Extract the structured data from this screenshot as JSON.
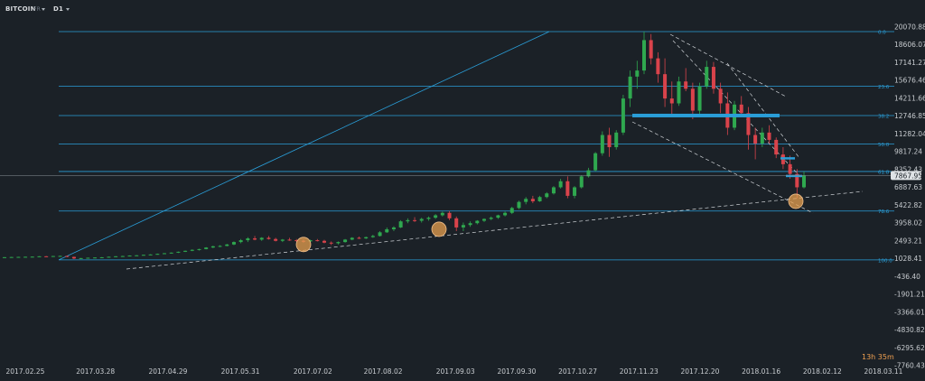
{
  "toolbar": {
    "symbol": "BITCOIN",
    "symbol_sub": "FR",
    "timeframe": "D1"
  },
  "countdown": "13h 35m",
  "colors": {
    "background": "#1b2127",
    "fib_line": "#2a9ed8",
    "candle_up": "#2fa84f",
    "candle_down": "#d9434b",
    "highlight_circle": "#e8a050",
    "trend_dashed": "#d0d4d8",
    "resistance_bar": "#2a9ed8"
  },
  "chart_data": {
    "type": "candlestick",
    "title": "",
    "y_axis_ticks": [
      "20070.88",
      "18606.07",
      "17141.27",
      "15676.46",
      "14211.66",
      "12746.85",
      "11282.04",
      "9817.24",
      "8352.43",
      "6887.63",
      "5422.82",
      "3958.02",
      "2493.21",
      "1028.41",
      "-436.40",
      "-1901.21",
      "-3366.01",
      "-4830.82",
      "-6295.62",
      "-7760.43"
    ],
    "current_price": "7867.95",
    "x_axis_ticks": [
      "2017.02.25",
      "2017.03.28",
      "2017.04.29",
      "2017.05.31",
      "2017.07.02",
      "2017.08.02",
      "2017.09.03",
      "2017.09.30",
      "2017.10.27",
      "2017.11.23",
      "2017.12.20",
      "2018.01.16",
      "2018.02.12",
      "2018.03.11"
    ],
    "fibonacci_levels": [
      {
        "label": "0.0",
        "price": 19700
      },
      {
        "label": "23.6",
        "price": 15200
      },
      {
        "label": "38.2",
        "price": 12800
      },
      {
        "label": "50.0",
        "price": 10450
      },
      {
        "label": "61.8",
        "price": 8200
      },
      {
        "label": "78.6",
        "price": 4950
      },
      {
        "label": "100.0",
        "price": 930
      }
    ],
    "ohlc_series": [
      [
        1150,
        1160,
        1140,
        1155
      ],
      [
        1155,
        1175,
        1145,
        1170
      ],
      [
        1170,
        1190,
        1160,
        1180
      ],
      [
        1180,
        1200,
        1170,
        1190
      ],
      [
        1190,
        1210,
        1180,
        1200
      ],
      [
        1200,
        1240,
        1190,
        1230
      ],
      [
        1230,
        1250,
        1210,
        1220
      ],
      [
        1220,
        1260,
        1200,
        1250
      ],
      [
        1250,
        1280,
        1230,
        1260
      ],
      [
        1260,
        1270,
        1150,
        1180
      ],
      [
        1180,
        1200,
        1000,
        1050
      ],
      [
        1050,
        1090,
        1000,
        1080
      ],
      [
        1080,
        1120,
        1060,
        1110
      ],
      [
        1110,
        1140,
        1090,
        1130
      ],
      [
        1130,
        1160,
        1110,
        1150
      ],
      [
        1150,
        1200,
        1140,
        1190
      ],
      [
        1190,
        1240,
        1180,
        1230
      ],
      [
        1230,
        1270,
        1210,
        1250
      ],
      [
        1250,
        1300,
        1240,
        1290
      ],
      [
        1290,
        1330,
        1270,
        1310
      ],
      [
        1310,
        1360,
        1300,
        1350
      ],
      [
        1350,
        1400,
        1330,
        1380
      ],
      [
        1380,
        1450,
        1360,
        1430
      ],
      [
        1430,
        1500,
        1410,
        1480
      ],
      [
        1480,
        1550,
        1460,
        1530
      ],
      [
        1530,
        1620,
        1500,
        1600
      ],
      [
        1600,
        1700,
        1580,
        1680
      ],
      [
        1680,
        1800,
        1650,
        1760
      ],
      [
        1760,
        1850,
        1700,
        1820
      ],
      [
        1820,
        1980,
        1800,
        1950
      ],
      [
        1950,
        2100,
        1900,
        2050
      ],
      [
        2050,
        2150,
        1980,
        2080
      ],
      [
        2080,
        2250,
        2050,
        2200
      ],
      [
        2200,
        2450,
        2150,
        2400
      ],
      [
        2400,
        2650,
        2300,
        2550
      ],
      [
        2550,
        2800,
        2400,
        2700
      ],
      [
        2700,
        2900,
        2550,
        2600
      ],
      [
        2600,
        2800,
        2500,
        2750
      ],
      [
        2750,
        2900,
        2600,
        2650
      ],
      [
        2650,
        2750,
        2450,
        2500
      ],
      [
        2500,
        2650,
        2400,
        2600
      ],
      [
        2600,
        2750,
        2500,
        2550
      ],
      [
        2550,
        2650,
        2400,
        2500
      ],
      [
        2500,
        2600,
        2350,
        2450
      ],
      [
        2450,
        2600,
        2400,
        2550
      ],
      [
        2550,
        2650,
        2450,
        2500
      ],
      [
        2500,
        2580,
        2300,
        2350
      ],
      [
        2350,
        2450,
        2150,
        2300
      ],
      [
        2300,
        2450,
        2200,
        2400
      ],
      [
        2400,
        2650,
        2350,
        2600
      ],
      [
        2600,
        2800,
        2550,
        2750
      ],
      [
        2750,
        2850,
        2650,
        2700
      ],
      [
        2700,
        2850,
        2650,
        2800
      ],
      [
        2800,
        3000,
        2750,
        2900
      ],
      [
        2900,
        3300,
        2850,
        3200
      ],
      [
        3200,
        3600,
        3150,
        3450
      ],
      [
        3450,
        3700,
        3300,
        3600
      ],
      [
        3600,
        4200,
        3550,
        4100
      ],
      [
        4100,
        4350,
        3950,
        4200
      ],
      [
        4200,
        4450,
        4050,
        4150
      ],
      [
        4150,
        4400,
        4000,
        4300
      ],
      [
        4300,
        4500,
        4150,
        4400
      ],
      [
        4400,
        4700,
        4300,
        4600
      ],
      [
        4600,
        4900,
        4500,
        4800
      ],
      [
        4800,
        4950,
        4200,
        4350
      ],
      [
        4350,
        4500,
        3300,
        3600
      ],
      [
        3600,
        4000,
        3300,
        3800
      ],
      [
        3800,
        4100,
        3650,
        3950
      ],
      [
        3950,
        4200,
        3850,
        4150
      ],
      [
        4150,
        4350,
        4050,
        4300
      ],
      [
        4300,
        4500,
        4200,
        4400
      ],
      [
        4400,
        4650,
        4300,
        4600
      ],
      [
        4600,
        4900,
        4500,
        4800
      ],
      [
        4800,
        5300,
        4700,
        5200
      ],
      [
        5200,
        5800,
        5100,
        5700
      ],
      [
        5700,
        6100,
        5500,
        5950
      ],
      [
        5950,
        6200,
        5600,
        5750
      ],
      [
        5750,
        6200,
        5700,
        6100
      ],
      [
        6100,
        6500,
        6000,
        6400
      ],
      [
        6400,
        7000,
        6300,
        6900
      ],
      [
        6900,
        7600,
        6800,
        7400
      ],
      [
        7400,
        7800,
        6000,
        6200
      ],
      [
        6200,
        7000,
        6000,
        6900
      ],
      [
        6900,
        7900,
        6800,
        7800
      ],
      [
        7800,
        8500,
        7700,
        8300
      ],
      [
        8300,
        9800,
        8200,
        9700
      ],
      [
        9700,
        11500,
        9500,
        11200
      ],
      [
        11200,
        11800,
        9400,
        10200
      ],
      [
        10200,
        11600,
        10000,
        11400
      ],
      [
        11400,
        14500,
        11200,
        14200
      ],
      [
        14200,
        16500,
        13500,
        16000
      ],
      [
        16000,
        17300,
        15000,
        16500
      ],
      [
        16500,
        19700,
        16200,
        19000
      ],
      [
        19000,
        19500,
        17000,
        17500
      ],
      [
        17500,
        18000,
        15500,
        16200
      ],
      [
        16200,
        17500,
        13500,
        14200
      ],
      [
        14200,
        15600,
        12800,
        13800
      ],
      [
        13800,
        16000,
        13600,
        15600
      ],
      [
        15600,
        16700,
        14800,
        15000
      ],
      [
        15000,
        15500,
        12500,
        13200
      ],
      [
        13200,
        15500,
        12900,
        15200
      ],
      [
        15200,
        17300,
        15000,
        16800
      ],
      [
        16800,
        17200,
        14600,
        15000
      ],
      [
        15000,
        15500,
        13000,
        13800
      ],
      [
        13800,
        14700,
        11200,
        11800
      ],
      [
        11800,
        14000,
        11600,
        13700
      ],
      [
        13700,
        14400,
        12800,
        13000
      ],
      [
        13000,
        13500,
        10000,
        11200
      ],
      [
        11200,
        11800,
        9200,
        10500
      ],
      [
        10500,
        11800,
        10200,
        11400
      ],
      [
        11400,
        12000,
        10500,
        10800
      ],
      [
        10800,
        11000,
        9300,
        9600
      ],
      [
        9600,
        10200,
        8400,
        8800
      ],
      [
        8800,
        9500,
        7600,
        8000
      ],
      [
        8000,
        8400,
        6000,
        6900
      ],
      [
        6900,
        8200,
        6800,
        7868
      ]
    ]
  }
}
